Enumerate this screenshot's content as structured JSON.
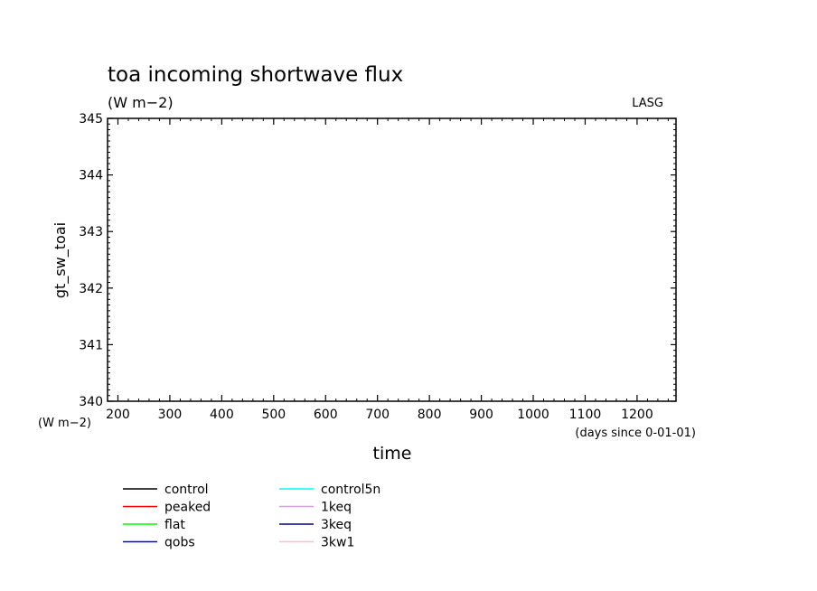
{
  "chart_data": {
    "type": "line",
    "title": "toa incoming shortwave flux",
    "subtitle": "(W m−2)",
    "credit": "LASG",
    "xlabel": "time",
    "x_unit": "(days since 0-01-01)",
    "ylabel": "gt_sw_toai",
    "y_unit": "(W m−2)",
    "xlim": [
      180,
      1275
    ],
    "ylim": [
      340,
      345
    ],
    "x_ticks": [
      200,
      300,
      400,
      500,
      600,
      700,
      800,
      900,
      1000,
      1100,
      1200
    ],
    "x_tick_labels": [
      "200",
      "300",
      "400",
      "500",
      "600",
      "700",
      "800",
      "900",
      "1000",
      "1100",
      "1200"
    ],
    "y_ticks": [
      340,
      341,
      342,
      343,
      344,
      345
    ],
    "y_tick_labels": [
      "340",
      "341",
      "342",
      "343",
      "344",
      "345"
    ],
    "grid": false,
    "legend_position": "bottom-left",
    "series": [
      {
        "name": "control",
        "color": "#000000",
        "x": [
          180,
          1275
        ],
        "y": [
          345,
          345
        ]
      },
      {
        "name": "peaked",
        "color": "#ff0000",
        "x": [
          180,
          1275
        ],
        "y": [
          345,
          345
        ]
      },
      {
        "name": "flat",
        "color": "#00ff00",
        "x": [
          180,
          1275
        ],
        "y": [
          345,
          345
        ]
      },
      {
        "name": "qobs",
        "color": "#0000ff",
        "x": [
          180,
          1275
        ],
        "y": [
          345,
          345
        ]
      },
      {
        "name": "control5n",
        "color": "#00ffff",
        "x": [
          180,
          1275
        ],
        "y": [
          345,
          345
        ]
      },
      {
        "name": "1keq",
        "color": "#d8a0e0",
        "x": [
          180,
          1275
        ],
        "y": [
          345,
          345
        ]
      },
      {
        "name": "3keq",
        "color": "#000080",
        "x": [
          180,
          1275
        ],
        "y": [
          345,
          345
        ]
      },
      {
        "name": "3kw1",
        "color": "#ffc0cb",
        "x": [
          180,
          1275
        ],
        "y": [
          345,
          345
        ]
      }
    ]
  }
}
